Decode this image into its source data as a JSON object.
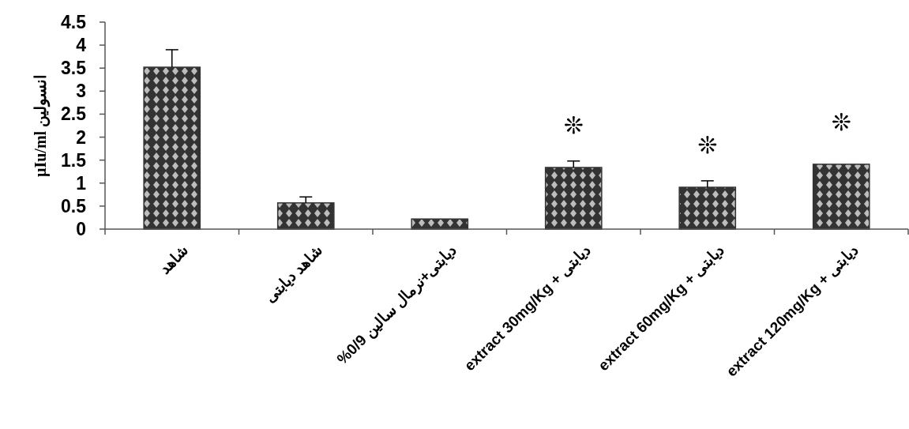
{
  "chart_data": {
    "type": "bar",
    "ylabel": "µIu/ml انسولین",
    "categories": [
      "شاهد",
      "شاهد دیابتی",
      "دیابتی+نرمال سالین 0/9%",
      "دیابتی + extract 30mg/Kg",
      "دیابتی + extract 60mg/Kg",
      "دیابتی + extract 120mg/Kg"
    ],
    "values": [
      3.52,
      0.57,
      0.22,
      1.34,
      0.91,
      1.41
    ],
    "errors": [
      [
        3.52,
        3.9
      ],
      [
        0.57,
        0.7
      ],
      null,
      [
        1.34,
        1.48
      ],
      [
        0.91,
        1.05
      ],
      null
    ],
    "color": "#333333",
    "ylim": [
      0,
      4.5
    ],
    "yticks": [
      0,
      0.5,
      1,
      1.5,
      2,
      2.5,
      3,
      3.5,
      4,
      4.5
    ],
    "annotations": [
      {
        "text": "❊",
        "x": "دیابتی + extract 30mg/Kg",
        "y": 1.34
      },
      {
        "text": "❊",
        "x": "دیابتی + extract 60mg/Kg",
        "y": 0.91
      },
      {
        "text": "❊",
        "x": "دیابتی + extract 120mg/Kg",
        "y": 1.41
      }
    ],
    "grid": false
  }
}
